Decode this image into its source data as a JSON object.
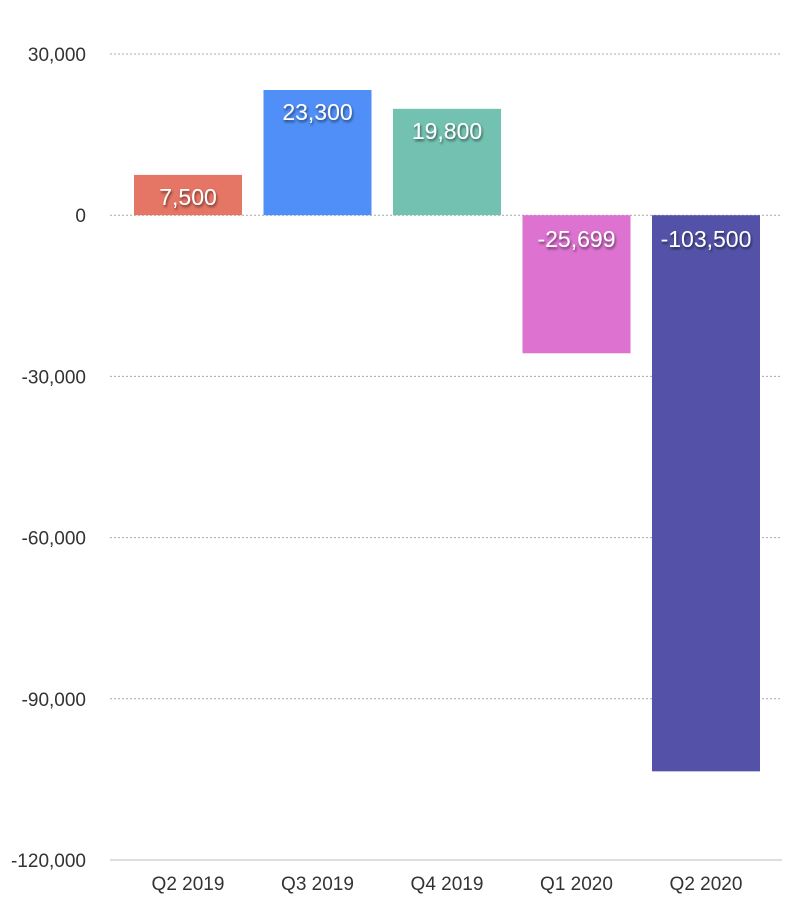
{
  "chart_data": {
    "type": "bar",
    "categories": [
      "Q2 2019",
      "Q3 2019",
      "Q4 2019",
      "Q1 2020",
      "Q2 2020"
    ],
    "values": [
      7500,
      23300,
      19800,
      -25699,
      -103500
    ],
    "value_labels": [
      "7,500",
      "23,300",
      "19,800",
      "-25,699",
      "-103,500"
    ],
    "colors": [
      "#e57565",
      "#4f8ff7",
      "#73c2b1",
      "#dd72d0",
      "#5352a8"
    ],
    "ylim": [
      -120000,
      30000
    ],
    "yticks": [
      30000,
      0,
      -30000,
      -60000,
      -90000,
      -120000
    ],
    "ytick_labels": [
      "30,000",
      "0",
      "-30,000",
      "-60,000",
      "-90,000",
      "-120,000"
    ],
    "grid": true,
    "legend": "none",
    "title": "",
    "xlabel": "",
    "ylabel": ""
  }
}
